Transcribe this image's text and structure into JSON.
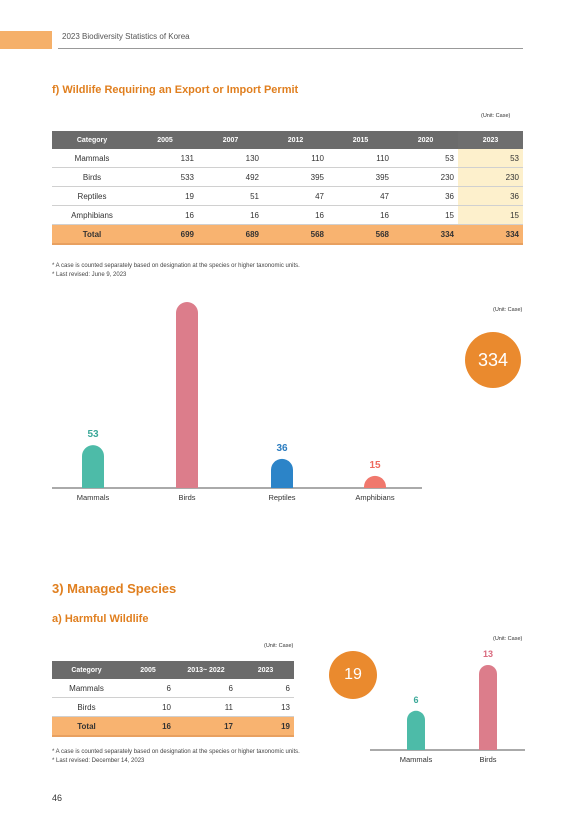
{
  "header": {
    "title": "2023 Biodiversity Statistics of Korea"
  },
  "section_f": {
    "title": "f) Wildlife Requiring an Export or Import Permit",
    "unit": "(Unit: Case)",
    "columns": [
      "Category",
      "2005",
      "2007",
      "2012",
      "2015",
      "2020",
      "2023"
    ],
    "rows": [
      [
        "Mammals",
        "131",
        "130",
        "110",
        "110",
        "53",
        "53"
      ],
      [
        "Birds",
        "533",
        "492",
        "395",
        "395",
        "230",
        "230"
      ],
      [
        "Reptiles",
        "19",
        "51",
        "47",
        "47",
        "36",
        "36"
      ],
      [
        "Amphibians",
        "16",
        "16",
        "16",
        "16",
        "15",
        "15"
      ]
    ],
    "total": [
      "Total",
      "699",
      "689",
      "568",
      "568",
      "334",
      "334"
    ],
    "notes": [
      "* A case is counted separately based on designation at the species or higher taxonomic units.",
      "* Last revised: June 9, 2023"
    ],
    "chart_unit": "(Unit: Case)",
    "total_badge": "334"
  },
  "section_3": {
    "title": "3) Managed Species"
  },
  "section_a": {
    "title": "a) Harmful Wildlife",
    "unit": "(Unit: Case)",
    "columns": [
      "Category",
      "2005",
      "2013~ 2022",
      "2023"
    ],
    "rows": [
      [
        "Mammals",
        "6",
        "6",
        "6"
      ],
      [
        "Birds",
        "10",
        "11",
        "13"
      ]
    ],
    "total": [
      "Total",
      "16",
      "17",
      "19"
    ],
    "notes": [
      "* A case is counted separately based on designation at the species or higher taxonomic units.",
      "* Last revised: December 14, 2023"
    ],
    "chart_unit": "(Unit: Case)",
    "total_badge": "19"
  },
  "page_number": "46",
  "chart_data": [
    {
      "type": "bar",
      "categories": [
        "Mammals",
        "Birds",
        "Reptiles",
        "Amphibians"
      ],
      "values": [
        53,
        230,
        36,
        15
      ],
      "colors": [
        "#4dbba8",
        "#dc7d8b",
        "#2c84c8",
        "#f0786d"
      ],
      "value_colors": [
        "#3aa898",
        "#d96a7e",
        "#2a7cc0",
        "#ee6a5e"
      ],
      "ylim": [
        0,
        230
      ]
    },
    {
      "type": "bar",
      "categories": [
        "Mammals",
        "Birds"
      ],
      "values": [
        6,
        13
      ],
      "colors": [
        "#4dbba8",
        "#dc7d8b"
      ],
      "value_colors": [
        "#3aa898",
        "#d96a7e"
      ],
      "ylim": [
        0,
        13
      ]
    }
  ]
}
